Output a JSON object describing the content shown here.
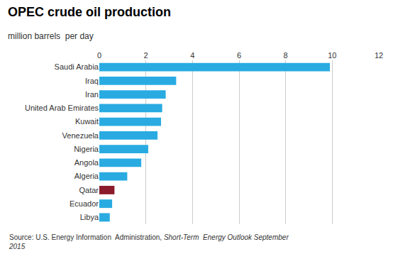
{
  "chart_data": {
    "type": "bar",
    "orientation": "horizontal",
    "title": "OPEC crude oil production",
    "subtitle": "million barrels  per day",
    "categories": [
      "Saudi Arabia",
      "Iraq",
      "Iran",
      "United Arab Emirates",
      "Kuwait",
      "Venezuela",
      "Nigeria",
      "Angola",
      "Algeria",
      "Qatar",
      "Ecuador",
      "Libya"
    ],
    "values": [
      9.9,
      3.3,
      2.85,
      2.7,
      2.65,
      2.5,
      2.1,
      1.8,
      1.2,
      0.65,
      0.55,
      0.45
    ],
    "colors": [
      "#29ABE2",
      "#29ABE2",
      "#29ABE2",
      "#29ABE2",
      "#29ABE2",
      "#29ABE2",
      "#29ABE2",
      "#29ABE2",
      "#29ABE2",
      "#8B1A2A",
      "#29ABE2",
      "#29ABE2"
    ],
    "xlim": [
      0,
      12
    ],
    "xticks": [
      0,
      2,
      4,
      6,
      8,
      10,
      12
    ],
    "grid": true,
    "annotations": [
      "Source: U.S. Energy Information  Administration, ",
      "Short-Term  Energy Outlook September\n2015"
    ]
  }
}
